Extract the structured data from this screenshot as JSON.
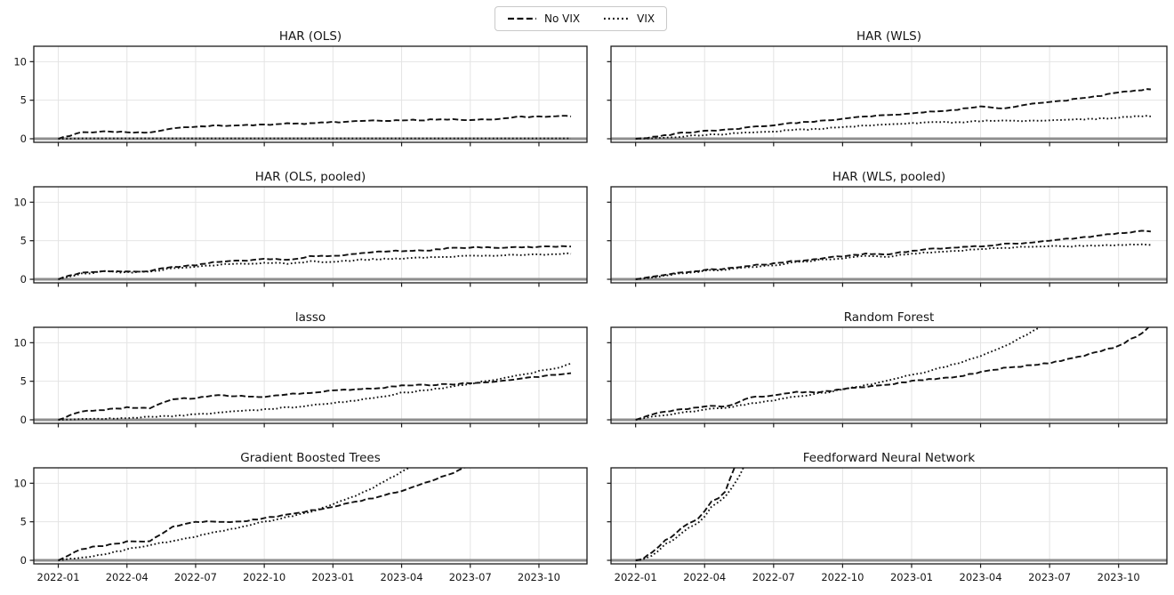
{
  "figure": {
    "background": "#ffffff"
  },
  "legend": {
    "items": [
      {
        "label": "No VIX",
        "style": "dashed"
      },
      {
        "label": "VIX",
        "style": "dotted"
      }
    ]
  },
  "style": {
    "line_color": "#111111",
    "grid_color": "#e4e4e4",
    "spine_color": "#1a1a1a",
    "zero_line_color": "#8e8e8e",
    "tick_color": "#1a1a1a"
  },
  "axes": {
    "x_start_label": "2022-01",
    "x_tick_labels": [
      "2022-01",
      "2022-04",
      "2022-07",
      "2022-10",
      "2023-01",
      "2023-04",
      "2023-07",
      "2023-10"
    ],
    "x_tick_months": [
      0,
      3,
      6,
      9,
      12,
      15,
      18,
      21
    ],
    "xlim_months": [
      -1.07,
      23.1
    ],
    "y_ticks": [
      0,
      5,
      10
    ],
    "ylim": [
      -0.46,
      12.0
    ],
    "default_x_months": [
      0,
      1,
      2,
      3,
      4,
      5,
      6,
      7,
      8,
      9,
      10,
      11,
      12,
      13,
      14,
      15,
      16,
      17,
      18,
      19,
      20,
      21,
      22,
      22.4
    ]
  },
  "chart_data": [
    {
      "type": "line",
      "title": "HAR (OLS)",
      "series": [
        {
          "name": "No VIX",
          "style": "dashed",
          "y": [
            0,
            0.8,
            1.0,
            0.85,
            0.8,
            1.35,
            1.5,
            1.7,
            1.75,
            1.8,
            2.0,
            1.95,
            2.15,
            2.3,
            2.35,
            2.4,
            2.45,
            2.55,
            2.45,
            2.55,
            2.8,
            2.85,
            2.95,
            2.9
          ]
        },
        {
          "name": "VIX",
          "style": "dotted",
          "y": [
            0,
            0.05,
            0.05,
            0.05,
            0.05,
            0.05,
            0.05,
            0.05,
            0.05,
            0.05,
            0.05,
            0.05,
            0.05,
            0.05,
            0.05,
            0.05,
            0.05,
            0.05,
            0.05,
            0.05,
            0.05,
            0.05,
            0.05,
            0.05
          ]
        }
      ]
    },
    {
      "type": "line",
      "title": "HAR (WLS)",
      "series": [
        {
          "name": "No VIX",
          "style": "dashed",
          "y": [
            0,
            0.3,
            0.75,
            1.0,
            1.2,
            1.5,
            1.75,
            2.05,
            2.3,
            2.55,
            2.95,
            3.0,
            3.3,
            3.55,
            3.8,
            4.15,
            3.95,
            4.4,
            4.75,
            5.1,
            5.5,
            6.0,
            6.35,
            6.4
          ]
        },
        {
          "name": "VIX",
          "style": "dotted",
          "y": [
            0,
            0.1,
            0.3,
            0.5,
            0.65,
            0.8,
            0.95,
            1.15,
            1.3,
            1.5,
            1.7,
            1.8,
            2.0,
            2.15,
            2.1,
            2.3,
            2.4,
            2.3,
            2.4,
            2.5,
            2.6,
            2.75,
            2.95,
            2.9
          ]
        }
      ]
    },
    {
      "type": "line",
      "title": "HAR (OLS, pooled)",
      "series": [
        {
          "name": "No VIX",
          "style": "dashed",
          "y": [
            0,
            0.85,
            1.1,
            1.0,
            1.1,
            1.6,
            1.85,
            2.3,
            2.4,
            2.6,
            2.55,
            2.95,
            3.0,
            3.3,
            3.55,
            3.7,
            3.7,
            4.0,
            4.15,
            4.1,
            4.2,
            4.2,
            4.3,
            4.25
          ]
        },
        {
          "name": "VIX",
          "style": "dotted",
          "y": [
            0,
            0.7,
            1.0,
            0.9,
            1.0,
            1.4,
            1.6,
            1.9,
            2.0,
            2.1,
            2.05,
            2.3,
            2.25,
            2.5,
            2.6,
            2.7,
            2.8,
            2.95,
            3.0,
            3.05,
            3.15,
            3.2,
            3.35,
            3.3
          ]
        }
      ]
    },
    {
      "type": "line",
      "title": "HAR (WLS, pooled)",
      "series": [
        {
          "name": "No VIX",
          "style": "dashed",
          "y": [
            0,
            0.4,
            0.9,
            1.2,
            1.4,
            1.75,
            2.05,
            2.4,
            2.7,
            3.0,
            3.3,
            3.25,
            3.7,
            3.95,
            4.1,
            4.3,
            4.55,
            4.75,
            5.0,
            5.3,
            5.6,
            6.0,
            6.25,
            6.2
          ]
        },
        {
          "name": "VIX",
          "style": "dotted",
          "y": [
            0,
            0.3,
            0.8,
            1.1,
            1.3,
            1.55,
            1.85,
            2.2,
            2.5,
            2.75,
            3.0,
            2.95,
            3.3,
            3.55,
            3.7,
            3.9,
            4.1,
            4.2,
            4.3,
            4.3,
            4.35,
            4.4,
            4.5,
            4.45
          ]
        }
      ]
    },
    {
      "type": "line",
      "title": "lasso",
      "series": [
        {
          "name": "No VIX",
          "style": "dashed",
          "y": [
            0,
            1.1,
            1.3,
            1.6,
            1.5,
            2.7,
            2.8,
            3.15,
            3.1,
            3.0,
            3.3,
            3.5,
            3.8,
            3.95,
            4.1,
            4.45,
            4.5,
            4.6,
            4.75,
            4.9,
            5.2,
            5.6,
            5.95,
            6.05
          ]
        },
        {
          "name": "VIX",
          "style": "dotted",
          "y": [
            0,
            0.1,
            0.15,
            0.25,
            0.35,
            0.5,
            0.7,
            0.9,
            1.1,
            1.35,
            1.6,
            1.85,
            2.15,
            2.5,
            2.9,
            3.5,
            3.8,
            4.2,
            4.7,
            5.2,
            5.7,
            6.3,
            6.9,
            7.3
          ]
        }
      ]
    },
    {
      "type": "line",
      "title": "Random Forest",
      "series": [
        {
          "name": "No VIX",
          "style": "dashed",
          "y": [
            0,
            1.0,
            1.3,
            1.75,
            1.8,
            2.9,
            3.1,
            3.6,
            3.55,
            4.0,
            4.3,
            4.6,
            5.0,
            5.3,
            5.55,
            6.2,
            6.7,
            7.0,
            7.35,
            8.0,
            8.7,
            9.6,
            11.2,
            12.3
          ]
        },
        {
          "name": "VIX",
          "style": "dotted",
          "x": [
            0,
            1,
            2,
            3,
            4,
            5,
            6,
            7,
            8,
            9,
            10,
            11,
            12,
            13,
            14,
            15,
            16,
            17,
            18
          ],
          "y": [
            0,
            0.5,
            0.9,
            1.3,
            1.6,
            2.1,
            2.5,
            3.0,
            3.45,
            3.9,
            4.5,
            5.1,
            5.8,
            6.5,
            7.3,
            8.3,
            9.5,
            11.0,
            12.7
          ]
        }
      ]
    },
    {
      "type": "line",
      "title": "Gradient Boosted Trees",
      "series": [
        {
          "name": "No VIX",
          "style": "dashed",
          "x": [
            0,
            1,
            2,
            3,
            4,
            5,
            6,
            7,
            8,
            9,
            10,
            11,
            12,
            13,
            14,
            15,
            16,
            17,
            18
          ],
          "y": [
            0,
            1.5,
            1.9,
            2.4,
            2.45,
            4.4,
            5.0,
            5.05,
            5.0,
            5.45,
            5.9,
            6.45,
            7.0,
            7.6,
            8.25,
            9.0,
            10.0,
            11.05,
            12.3
          ]
        },
        {
          "name": "VIX",
          "style": "dotted",
          "x": [
            0,
            1,
            2,
            3,
            4,
            5,
            6,
            7,
            8,
            9,
            10,
            11,
            12,
            13,
            14,
            15,
            16
          ],
          "y": [
            0,
            0.3,
            0.8,
            1.4,
            2.0,
            2.5,
            3.1,
            3.7,
            4.3,
            5.0,
            5.6,
            6.3,
            7.3,
            8.4,
            9.8,
            11.5,
            13.0
          ]
        }
      ]
    },
    {
      "type": "line",
      "title": "Feedforward Neural Network",
      "series": [
        {
          "name": "No VIX",
          "style": "dashed",
          "x": [
            0,
            0.3,
            0.7,
            1,
            1.3,
            1.7,
            2,
            2.3,
            2.7,
            3,
            3.3,
            3.6,
            3.9,
            4.1,
            4.35
          ],
          "y": [
            0,
            0.2,
            1.0,
            1.8,
            2.6,
            3.3,
            4.2,
            4.8,
            5.3,
            6.4,
            7.6,
            8.1,
            9.0,
            10.5,
            12.4
          ]
        },
        {
          "name": "VIX",
          "style": "dotted",
          "x": [
            0,
            0.3,
            0.7,
            1,
            1.3,
            1.7,
            2,
            2.3,
            2.7,
            3,
            3.3,
            3.6,
            3.9,
            4.2,
            4.5,
            4.75
          ],
          "y": [
            0,
            0.1,
            0.6,
            1.3,
            2.1,
            2.8,
            3.6,
            4.2,
            4.8,
            5.7,
            6.9,
            7.6,
            8.3,
            9.4,
            10.8,
            12.4
          ]
        }
      ]
    }
  ]
}
